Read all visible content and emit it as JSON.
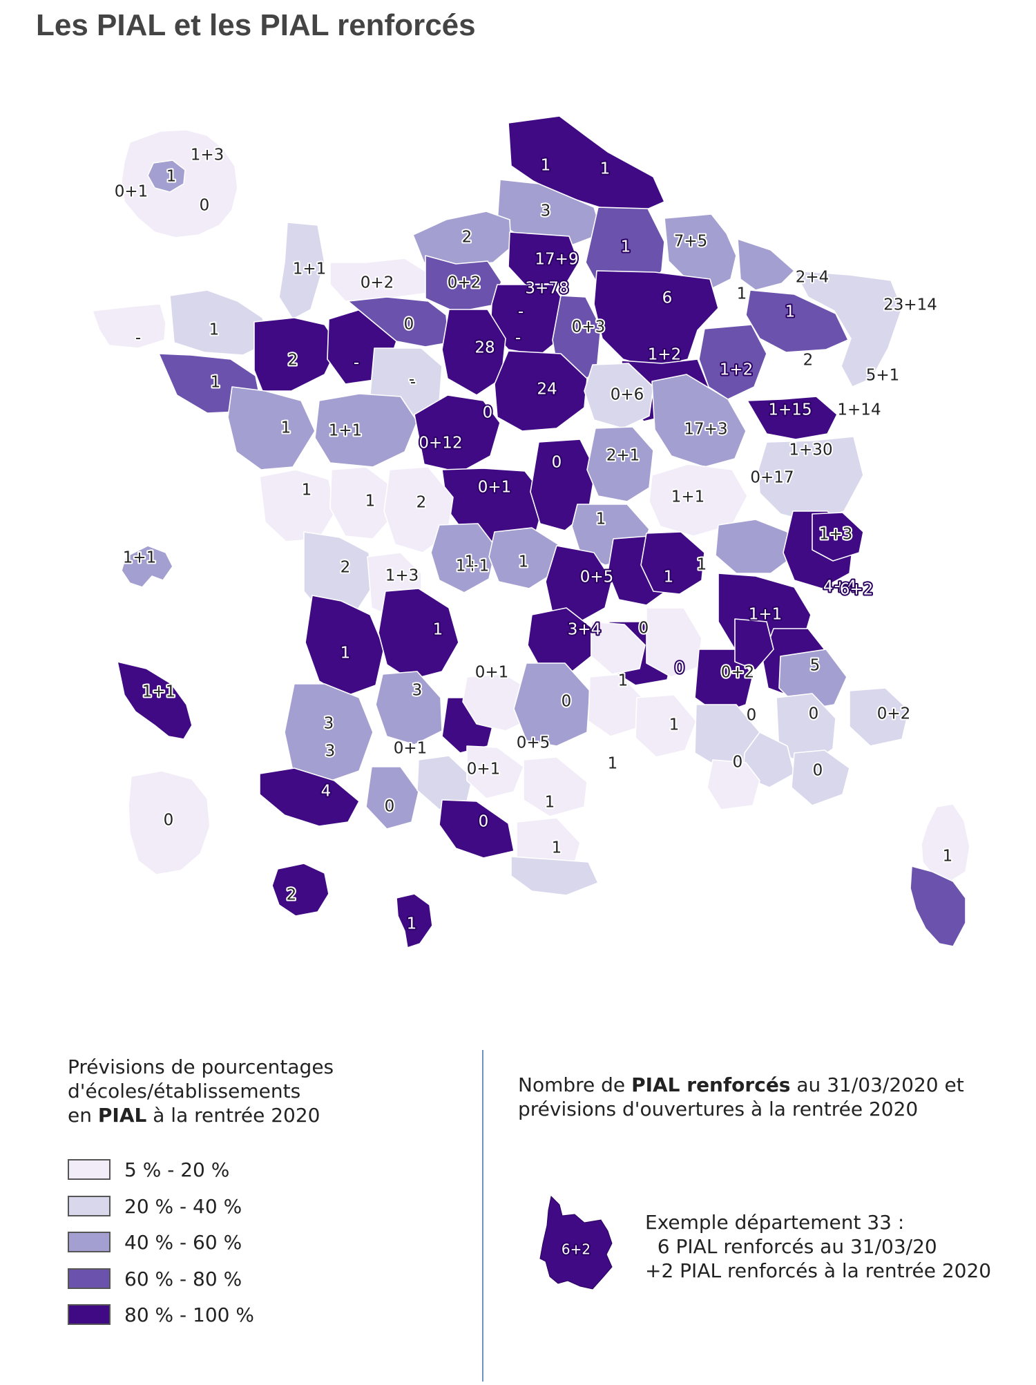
{
  "title": "Les PIAL et les PIAL renforcés",
  "colors": {
    "c1": "#f1ecf7",
    "c2": "#d9d7ec",
    "c3": "#a39fd0",
    "c4": "#6b52ad",
    "c5": "#3f0a84"
  },
  "legend": {
    "title_line1": "Prévisions de pourcentages",
    "title_line2": "d'écoles/établissements",
    "title_line3_pre": "en ",
    "title_line3_bold": "PIAL",
    "title_line3_post": " à la rentrée 2020",
    "classes": [
      {
        "label": "5 % - 20 %",
        "color": "#f1ecf7"
      },
      {
        "label": "20 % - 40 %",
        "color": "#d9d7ec"
      },
      {
        "label": "40 % - 60 %",
        "color": "#a39fd0"
      },
      {
        "label": "60 % - 80 %",
        "color": "#6b52ad"
      },
      {
        "label": "80 % - 100 %",
        "color": "#3f0a84"
      }
    ]
  },
  "note": {
    "line1_pre": "Nombre de ",
    "line1_bold": "PIAL renforcés",
    "line1_post": " au 31/03/2020 et",
    "line2": "prévisions d'ouvertures à la rentrée 2020"
  },
  "example": {
    "map_label": "6+2",
    "line1": "Exemple département 33 :",
    "line2": "  6 PIAL renforcés au 31/03/20",
    "line3": "+2 PIAL renforcés à la rentrée 2020"
  },
  "map_labels": [
    "1+3",
    "1",
    "0+1",
    "0",
    "1",
    "1",
    "3",
    "2",
    "17+9",
    "1",
    "7+5",
    "1+1",
    "0+2",
    "0+2",
    "3+78",
    "-",
    "6",
    "1",
    "2+4",
    "23+14",
    "-",
    "1",
    "0",
    "-",
    "0+3",
    "1",
    "1",
    "2",
    "-",
    "-",
    "28",
    "1+2",
    "1+2",
    "2",
    "5+1",
    "1",
    "-",
    "24",
    "0+6",
    "1+15",
    "1+14",
    "1",
    "1+1",
    "0",
    "0+12",
    "17+3",
    "1+30",
    "2+1",
    "0+17",
    "0",
    "0+1",
    "1",
    "1",
    "2",
    "1+1",
    "1",
    "1",
    "1+1",
    "1+3",
    "1+1",
    "2",
    "1+3",
    "1",
    "1",
    "0+5",
    "1",
    "4+4",
    "6+2",
    "1",
    "1",
    "3+4",
    "0",
    "1+1",
    "1+1",
    "0",
    "5",
    "0+1",
    "1",
    "0+2",
    "3",
    "3",
    "0",
    "0",
    "1",
    "0",
    "0+2",
    "3",
    "0+5",
    "0",
    "0+1",
    "0+1",
    "1",
    "0",
    "4",
    "0",
    "1",
    "0",
    "1",
    "2",
    "0",
    "1",
    "1"
  ]
}
